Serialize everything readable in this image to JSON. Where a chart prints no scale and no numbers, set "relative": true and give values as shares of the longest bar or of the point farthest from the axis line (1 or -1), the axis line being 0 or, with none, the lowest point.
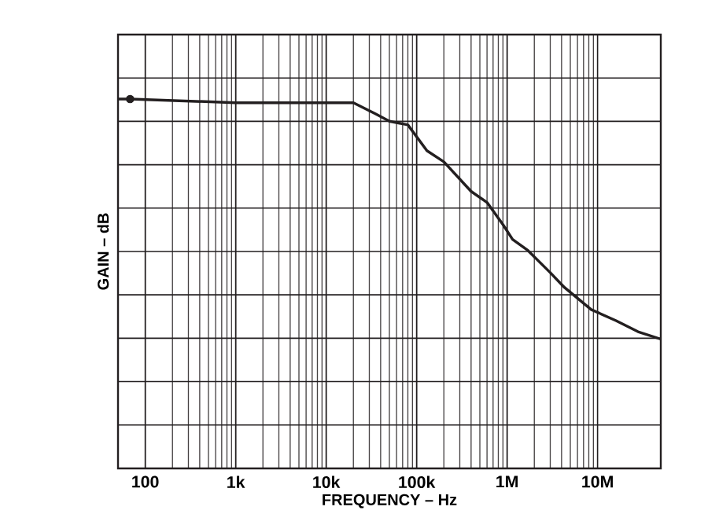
{
  "chart_data": {
    "type": "line",
    "xlabel": "FREQUENCY – Hz",
    "ylabel": "GAIN – dB",
    "log": "x",
    "relative": true,
    "grid": true,
    "xlim": [
      50,
      50000000
    ],
    "xticks": [
      {
        "value": 100,
        "label": "100"
      },
      {
        "value": 1000,
        "label": "1k"
      },
      {
        "value": 10000,
        "label": "10k"
      },
      {
        "value": 100000,
        "label": "100k"
      },
      {
        "value": 1000000,
        "label": "1M"
      },
      {
        "value": 10000000,
        "label": "10M"
      }
    ],
    "series": [
      {
        "color": "#231f20",
        "x": [
          50,
          68,
          1000,
          7000,
          20000,
          35000,
          50000,
          80000,
          130000,
          200000,
          400000,
          600000,
          900000,
          1150000,
          1700000,
          3000000,
          4300000,
          8500000,
          16000000,
          28000000,
          50000000
        ],
        "values": [
          1.0,
          1.0,
          0.99,
          0.99,
          0.99,
          0.96,
          0.94,
          0.93,
          0.86,
          0.83,
          0.75,
          0.72,
          0.66,
          0.62,
          0.59,
          0.53,
          0.49,
          0.43,
          0.4,
          0.37,
          0.35
        ]
      },
      {
        "type": "scatter",
        "marker": "circle",
        "color": "#231f20",
        "x": [
          68
        ],
        "values": [
          1.0
        ]
      }
    ]
  }
}
